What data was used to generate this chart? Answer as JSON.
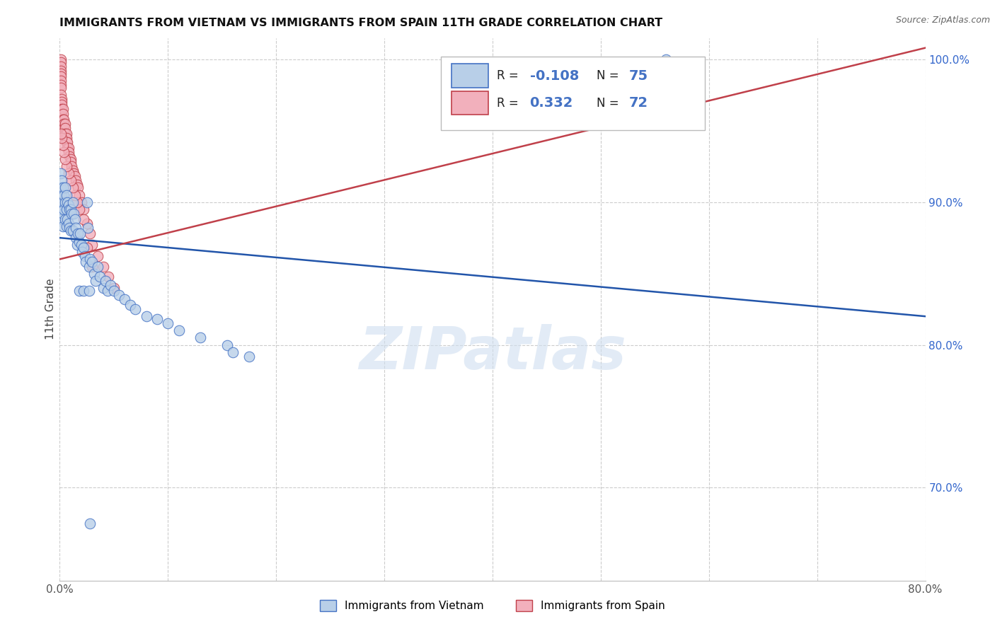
{
  "title": "IMMIGRANTS FROM VIETNAM VS IMMIGRANTS FROM SPAIN 11TH GRADE CORRELATION CHART",
  "source": "Source: ZipAtlas.com",
  "ylabel": "11th Grade",
  "watermark": "ZIPatlas",
  "xlim": [
    0.0,
    0.8
  ],
  "ylim": [
    0.635,
    1.015
  ],
  "xtick_positions": [
    0.0,
    0.1,
    0.2,
    0.3,
    0.4,
    0.5,
    0.6,
    0.7,
    0.8
  ],
  "xtick_labels": [
    "0.0%",
    "",
    "",
    "",
    "",
    "",
    "",
    "",
    "80.0%"
  ],
  "ytick_positions": [
    0.7,
    0.8,
    0.9,
    1.0
  ],
  "ytick_labels": [
    "70.0%",
    "80.0%",
    "90.0%",
    "100.0%"
  ],
  "legend_r_vietnam": "-0.108",
  "legend_n_vietnam": "75",
  "legend_r_spain": "0.332",
  "legend_n_spain": "72",
  "bottom_legend_vietnam": "Immigrants from Vietnam",
  "bottom_legend_spain": "Immigrants from Spain",
  "color_vietnam_face": "#b8cfe8",
  "color_vietnam_edge": "#4472c4",
  "color_spain_face": "#f2b0bc",
  "color_spain_edge": "#c0404a",
  "color_line_vietnam": "#2255aa",
  "color_line_spain": "#c0404a",
  "vietnam_x": [
    0.001,
    0.001,
    0.001,
    0.001,
    0.001,
    0.002,
    0.002,
    0.002,
    0.003,
    0.003,
    0.003,
    0.003,
    0.004,
    0.004,
    0.005,
    0.005,
    0.005,
    0.006,
    0.006,
    0.006,
    0.007,
    0.007,
    0.008,
    0.008,
    0.009,
    0.009,
    0.01,
    0.01,
    0.011,
    0.012,
    0.012,
    0.013,
    0.014,
    0.015,
    0.015,
    0.016,
    0.017,
    0.018,
    0.019,
    0.02,
    0.021,
    0.022,
    0.023,
    0.024,
    0.025,
    0.026,
    0.027,
    0.028,
    0.03,
    0.032,
    0.033,
    0.035,
    0.037,
    0.04,
    0.042,
    0.044,
    0.047,
    0.05,
    0.055,
    0.06,
    0.065,
    0.07,
    0.08,
    0.09,
    0.1,
    0.11,
    0.13,
    0.155,
    0.16,
    0.175,
    0.018,
    0.022,
    0.027,
    0.56,
    0.028
  ],
  "vietnam_y": [
    0.92,
    0.91,
    0.905,
    0.895,
    0.888,
    0.915,
    0.905,
    0.895,
    0.91,
    0.9,
    0.892,
    0.883,
    0.905,
    0.895,
    0.91,
    0.9,
    0.888,
    0.905,
    0.895,
    0.883,
    0.9,
    0.888,
    0.898,
    0.885,
    0.895,
    0.882,
    0.895,
    0.88,
    0.892,
    0.9,
    0.88,
    0.892,
    0.888,
    0.882,
    0.875,
    0.87,
    0.878,
    0.872,
    0.878,
    0.87,
    0.865,
    0.868,
    0.862,
    0.858,
    0.9,
    0.882,
    0.855,
    0.86,
    0.858,
    0.85,
    0.845,
    0.855,
    0.848,
    0.84,
    0.845,
    0.838,
    0.842,
    0.838,
    0.835,
    0.832,
    0.828,
    0.825,
    0.82,
    0.818,
    0.815,
    0.81,
    0.805,
    0.8,
    0.795,
    0.792,
    0.838,
    0.838,
    0.838,
    1.0,
    0.675
  ],
  "spain_x": [
    0.001,
    0.001,
    0.001,
    0.001,
    0.001,
    0.001,
    0.001,
    0.001,
    0.001,
    0.001,
    0.002,
    0.002,
    0.002,
    0.002,
    0.002,
    0.002,
    0.002,
    0.003,
    0.003,
    0.003,
    0.003,
    0.003,
    0.004,
    0.004,
    0.004,
    0.004,
    0.005,
    0.005,
    0.005,
    0.005,
    0.006,
    0.006,
    0.006,
    0.007,
    0.007,
    0.008,
    0.008,
    0.009,
    0.01,
    0.01,
    0.011,
    0.012,
    0.013,
    0.014,
    0.015,
    0.016,
    0.017,
    0.018,
    0.02,
    0.022,
    0.025,
    0.028,
    0.03,
    0.035,
    0.04,
    0.045,
    0.05,
    0.022,
    0.018,
    0.016,
    0.014,
    0.012,
    0.01,
    0.008,
    0.006,
    0.005,
    0.004,
    0.003,
    0.002,
    0.001,
    0.025,
    0.03
  ],
  "spain_y": [
    1.0,
    0.998,
    0.995,
    0.992,
    0.99,
    0.988,
    0.985,
    0.982,
    0.98,
    0.975,
    0.972,
    0.97,
    0.968,
    0.965,
    0.962,
    0.96,
    0.958,
    0.965,
    0.962,
    0.958,
    0.955,
    0.952,
    0.958,
    0.955,
    0.952,
    0.948,
    0.955,
    0.952,
    0.948,
    0.945,
    0.948,
    0.945,
    0.942,
    0.942,
    0.938,
    0.938,
    0.935,
    0.932,
    0.93,
    0.928,
    0.925,
    0.922,
    0.92,
    0.918,
    0.915,
    0.912,
    0.91,
    0.905,
    0.9,
    0.895,
    0.885,
    0.878,
    0.87,
    0.862,
    0.855,
    0.848,
    0.84,
    0.888,
    0.895,
    0.9,
    0.905,
    0.91,
    0.915,
    0.92,
    0.925,
    0.93,
    0.935,
    0.94,
    0.945,
    0.948,
    0.868,
    0.855
  ]
}
